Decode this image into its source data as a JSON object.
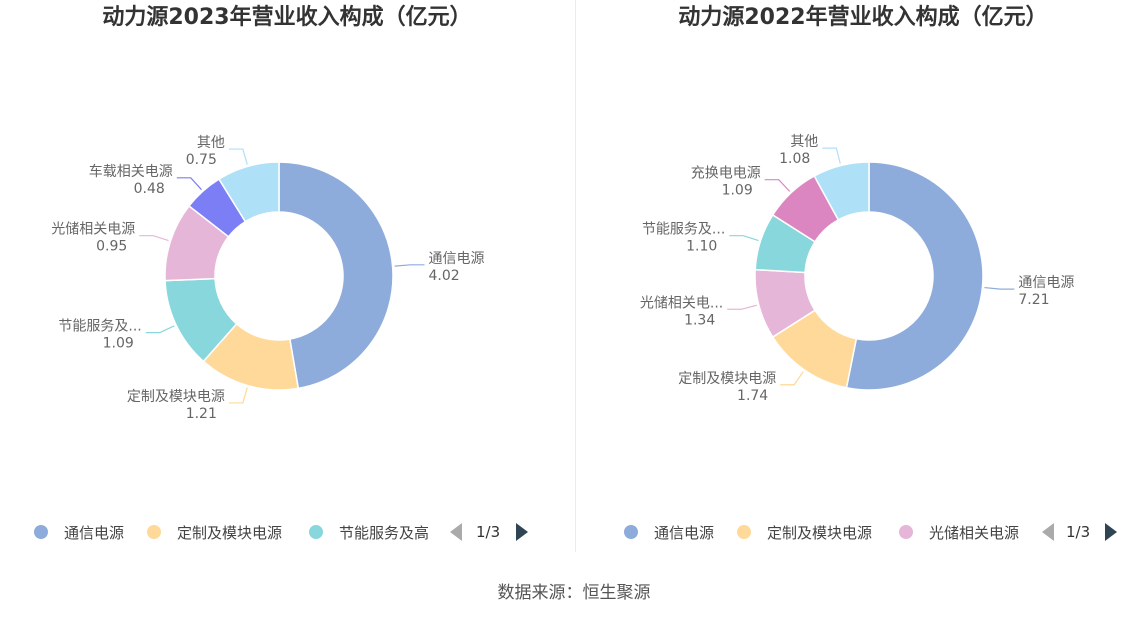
{
  "chart_data": [
    {
      "type": "pie",
      "title": "动力源2023年营业收入构成（亿元）",
      "donut": true,
      "slices": [
        {
          "name": "通信电源",
          "label": "通信电源",
          "value": 4.02,
          "display": "4.02",
          "color": "#8eacdb"
        },
        {
          "name": "定制及模块电源",
          "label": "定制及模块电源",
          "value": 1.21,
          "display": "1.21",
          "color": "#fed999"
        },
        {
          "name": "节能服务及高",
          "label": "节能服务及...",
          "value": 1.09,
          "display": "1.09",
          "color": "#87d7dc"
        },
        {
          "name": "光储相关电源",
          "label": "光储相关电源",
          "value": 0.95,
          "display": "0.95",
          "color": "#e6b6d8"
        },
        {
          "name": "车载相关电源",
          "label": "车载相关电源",
          "value": 0.48,
          "display": "0.48",
          "color": "#7b7ef5"
        },
        {
          "name": "其他",
          "label": "其他",
          "value": 0.75,
          "display": "0.75",
          "color": "#aee0f8"
        }
      ],
      "legend": {
        "placement": "bottom",
        "visible": [
          "通信电源",
          "定制及模块电源",
          "节能服务及高"
        ],
        "page": "1/3"
      }
    },
    {
      "type": "pie",
      "title": "动力源2022年营业收入构成（亿元）",
      "donut": true,
      "slices": [
        {
          "name": "通信电源",
          "label": "通信电源",
          "value": 7.21,
          "display": "7.21",
          "color": "#8eacdb"
        },
        {
          "name": "定制及模块电源",
          "label": "定制及模块电源",
          "value": 1.74,
          "display": "1.74",
          "color": "#fed999"
        },
        {
          "name": "光储相关电源",
          "label": "光储相关电...",
          "value": 1.34,
          "display": "1.34",
          "color": "#e6b6d8"
        },
        {
          "name": "节能服务及高",
          "label": "节能服务及...",
          "value": 1.1,
          "display": "1.10",
          "color": "#87d7dc"
        },
        {
          "name": "充换电电源",
          "label": "充换电电源",
          "value": 1.09,
          "display": "1.09",
          "color": "#db86c0"
        },
        {
          "name": "其他",
          "label": "其他",
          "value": 1.08,
          "display": "1.08",
          "color": "#aee0f8"
        }
      ],
      "legend": {
        "placement": "bottom",
        "visible": [
          "通信电源",
          "定制及模块电源",
          "光储相关电源"
        ],
        "page": "1/3"
      }
    }
  ],
  "source": "数据来源：恒生聚源"
}
